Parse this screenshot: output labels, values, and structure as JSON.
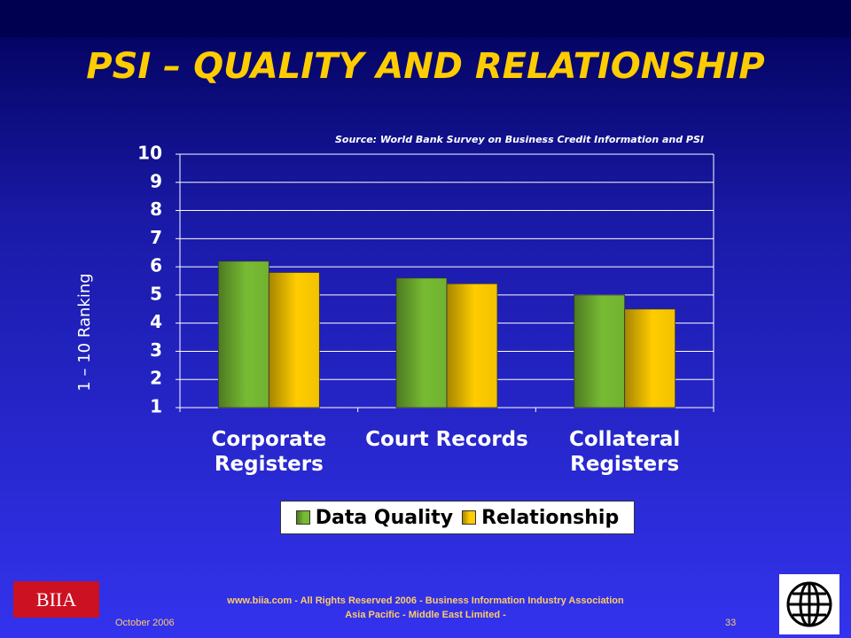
{
  "slide": {
    "footer_line1": "www.biia.com  - All Rights Reserved 2006 -  Business Information Industry Association",
    "footer_line2": "Asia Pacific - Middle East Limited -",
    "date": "October 2006",
    "page_number": 33,
    "logo": "BIIA"
  },
  "chart_data": {
    "type": "bar",
    "title": "PSI – QUALITY AND RELATIONSHIP",
    "subtitle": "Source: World Bank Survey on Business Credit Information and PSI",
    "y_label": "1 – 10 Ranking",
    "categories": [
      "Corporate Registers",
      "Court Records",
      "Collateral Registers"
    ],
    "series": [
      {
        "name": "Data Quality",
        "color": "#77bb33",
        "values": [
          6.2,
          5.6,
          5.0
        ]
      },
      {
        "name": "Relationship",
        "color": "#ffcc00",
        "values": [
          5.8,
          5.4,
          4.5
        ]
      }
    ],
    "ylim": [
      1,
      10
    ],
    "yticks": [
      1,
      2,
      3,
      4,
      5,
      6,
      7,
      8,
      9,
      10
    ],
    "grid": true
  }
}
